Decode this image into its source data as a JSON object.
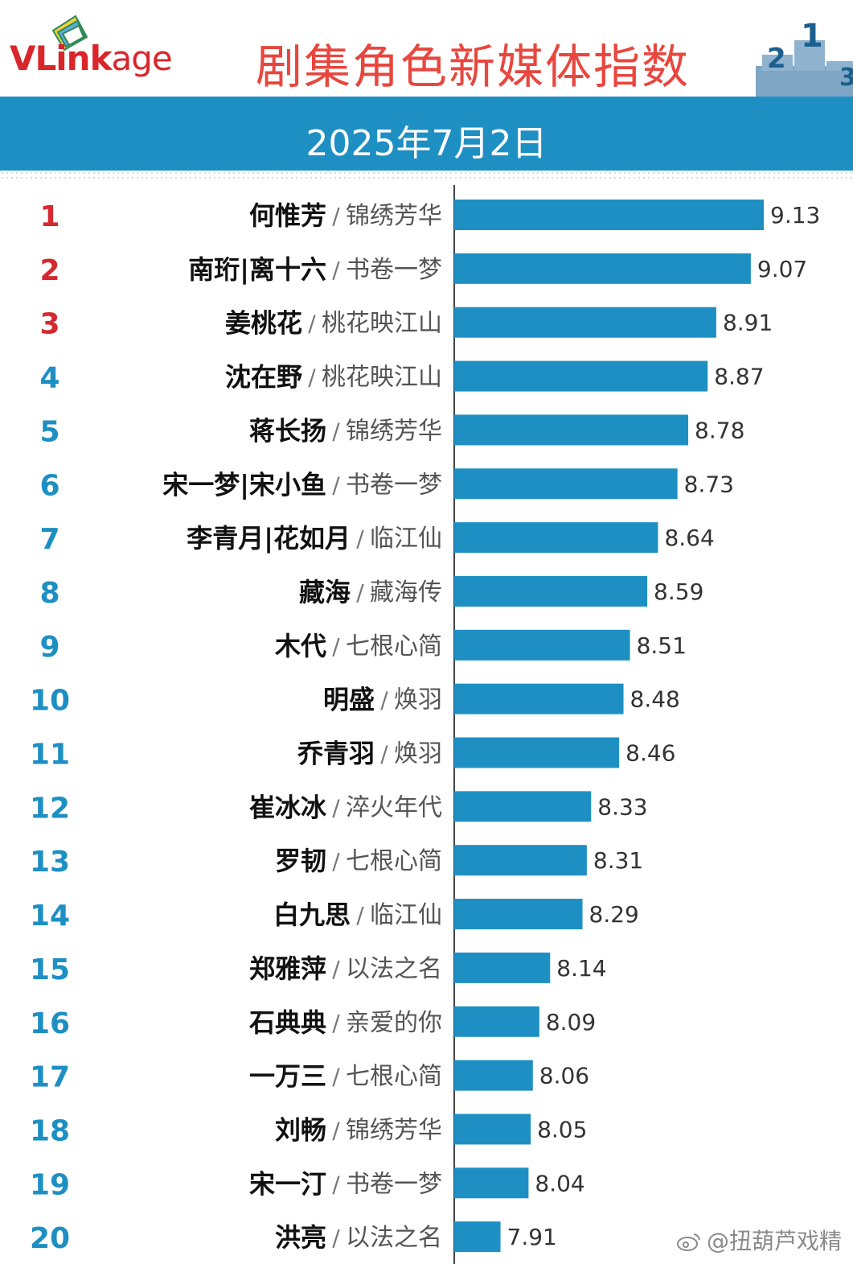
{
  "header": {
    "logo_text_main": "VLink",
    "logo_text_suffix": "age",
    "title": "剧集角色新媒体指数",
    "date": "2025年7月2日"
  },
  "colors": {
    "bar": "#1e8fc3",
    "top_rank": "#d42a2f",
    "rank": "#1e8fc3",
    "title": "#e8463e",
    "date_bar": "#1e8fc3"
  },
  "watermark": "@扭葫芦戏精",
  "chart_data": {
    "type": "bar",
    "orientation": "horizontal",
    "title": "剧集角色新媒体指数",
    "subtitle": "2025年7月2日",
    "xlim": [
      7.8,
      9.2
    ],
    "grid": false,
    "legend": "none",
    "rows": [
      {
        "rank": "1",
        "name": "何惟芳",
        "show": "锦绣芳华",
        "value": 9.13,
        "label": "9.13"
      },
      {
        "rank": "2",
        "name": "南珩|离十六",
        "show": "书卷一梦",
        "value": 9.07,
        "label": "9.07"
      },
      {
        "rank": "3",
        "name": "姜桃花",
        "show": "桃花映江山",
        "value": 8.91,
        "label": "8.91"
      },
      {
        "rank": "4",
        "name": "沈在野",
        "show": "桃花映江山",
        "value": 8.87,
        "label": "8.87"
      },
      {
        "rank": "5",
        "name": "蒋长扬",
        "show": "锦绣芳华",
        "value": 8.78,
        "label": "8.78"
      },
      {
        "rank": "6",
        "name": "宋一梦|宋小鱼",
        "show": "书卷一梦",
        "value": 8.73,
        "label": "8.73"
      },
      {
        "rank": "7",
        "name": "李青月|花如月",
        "show": "临江仙",
        "value": 8.64,
        "label": "8.64"
      },
      {
        "rank": "8",
        "name": "藏海",
        "show": "藏海传",
        "value": 8.59,
        "label": "8.59"
      },
      {
        "rank": "9",
        "name": "木代",
        "show": "七根心简",
        "value": 8.51,
        "label": "8.51"
      },
      {
        "rank": "10",
        "name": "明盛",
        "show": "焕羽",
        "value": 8.48,
        "label": "8.48"
      },
      {
        "rank": "11",
        "name": "乔青羽",
        "show": "焕羽",
        "value": 8.46,
        "label": "8.46"
      },
      {
        "rank": "12",
        "name": "崔冰冰",
        "show": "淬火年代",
        "value": 8.33,
        "label": "8.33"
      },
      {
        "rank": "13",
        "name": "罗韧",
        "show": "七根心简",
        "value": 8.31,
        "label": "8.31"
      },
      {
        "rank": "14",
        "name": "白九思",
        "show": "临江仙",
        "value": 8.29,
        "label": "8.29"
      },
      {
        "rank": "15",
        "name": "郑雅萍",
        "show": "以法之名",
        "value": 8.14,
        "label": "8.14"
      },
      {
        "rank": "16",
        "name": "石典典",
        "show": "亲爱的你",
        "value": 8.09,
        "label": "8.09"
      },
      {
        "rank": "17",
        "name": "一万三",
        "show": "七根心简",
        "value": 8.06,
        "label": "8.06"
      },
      {
        "rank": "18",
        "name": "刘畅",
        "show": "锦绣芳华",
        "value": 8.05,
        "label": "8.05"
      },
      {
        "rank": "19",
        "name": "宋一汀",
        "show": "书卷一梦",
        "value": 8.04,
        "label": "8.04"
      },
      {
        "rank": "20",
        "name": "洪亮",
        "show": "以法之名",
        "value": 7.91,
        "label": "7.91"
      }
    ]
  }
}
